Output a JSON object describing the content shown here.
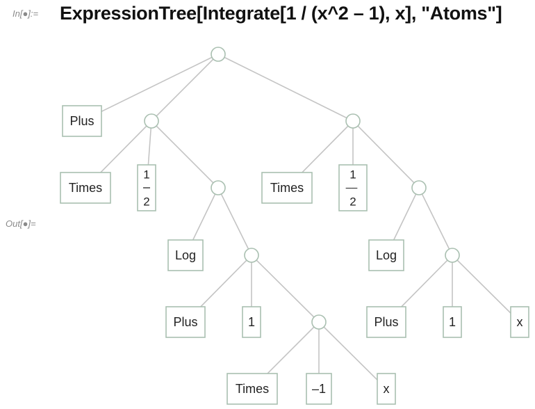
{
  "cell": {
    "input_label": "In[●]:=",
    "output_label": "Out[●]=",
    "input_expression": "ExpressionTree[Integrate[1 / (x^2 – 1), x], \"Atoms\"]"
  },
  "colors": {
    "edge": "#c4c4c4",
    "node_stroke": "#a9bfb0",
    "node_fill": "#ffffff",
    "text": "#222222",
    "label_gray": "#8a8a8a"
  },
  "tree": {
    "leaves": {
      "plus_root": "Plus",
      "times_left": "Times",
      "half_num": "1",
      "half_den": "2",
      "times_right": "Times",
      "neg_half_num": "1",
      "neg_half_bar": "––",
      "neg_half_den": "2",
      "log_left": "Log",
      "log_right": "Log",
      "plus_left": "Plus",
      "one_left": "1",
      "plus_right": "Plus",
      "one_right": "1",
      "x_right": "x",
      "times_bottom": "Times",
      "minus_one": "–1",
      "x_bottom": "x"
    }
  }
}
